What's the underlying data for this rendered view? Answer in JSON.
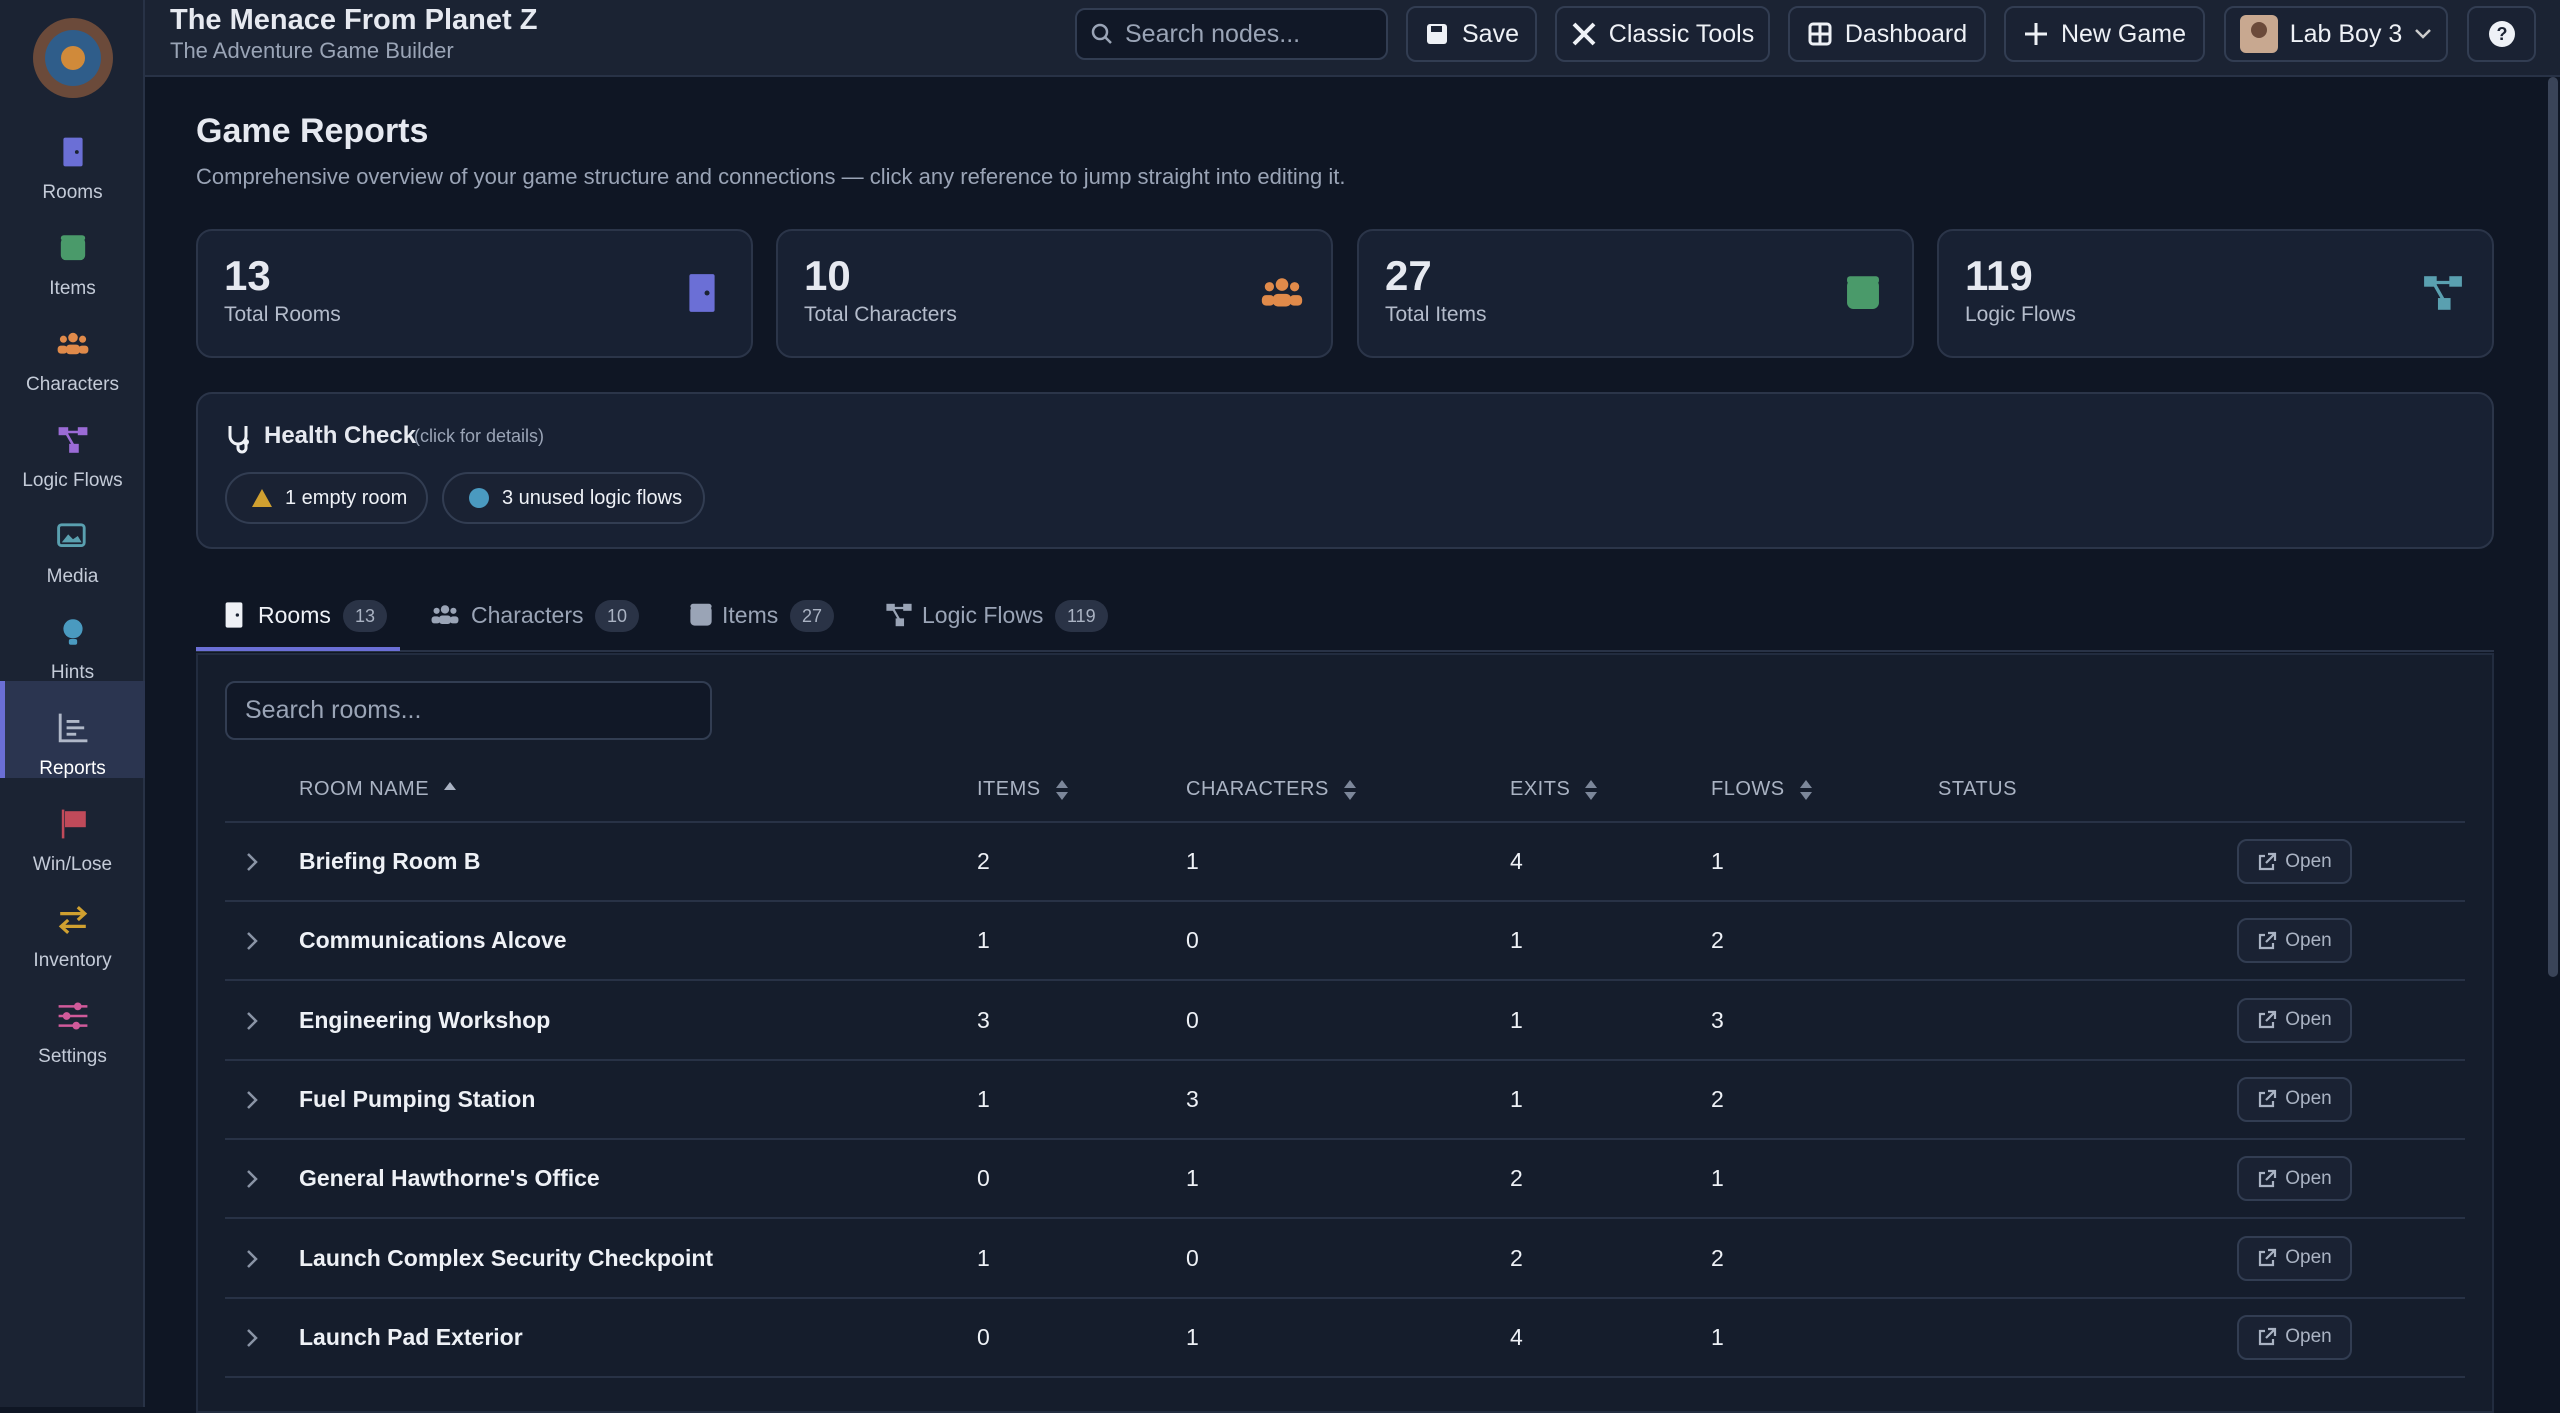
{
  "header": {
    "title": "The Menace From Planet Z",
    "subtitle": "The Adventure Game Builder",
    "search_placeholder": "Search nodes...",
    "buttons": [
      "Save",
      "Classic Tools",
      "Dashboard",
      "New Game"
    ],
    "user": "Lab Boy 3"
  },
  "sidebar": [
    "Rooms",
    "Items",
    "Characters",
    "Logic Flows",
    "Media",
    "Hints",
    "Reports",
    "Win/Lose",
    "Inventory",
    "Settings"
  ],
  "page": {
    "title": "Game Reports",
    "description": "Comprehensive overview of your game structure and connections — click any reference to jump straight into editing it."
  },
  "stats": [
    {
      "value": 13,
      "label": "Total Rooms"
    },
    {
      "value": 10,
      "label": "Total Characters"
    },
    {
      "value": 27,
      "label": "Total Items"
    },
    {
      "value": 119,
      "label": "Logic Flows"
    }
  ],
  "health": {
    "title": "Health Check",
    "hint": "(click for details)",
    "issues": [
      "1 empty room",
      "3 unused logic flows"
    ]
  },
  "tabs": [
    {
      "label": "Rooms",
      "count": 13
    },
    {
      "label": "Characters",
      "count": 10
    },
    {
      "label": "Items",
      "count": 27
    },
    {
      "label": "Logic Flows",
      "count": 119
    }
  ],
  "table": {
    "search_placeholder": "Search rooms...",
    "columns": [
      "ROOM NAME",
      "ITEMS",
      "CHARACTERS",
      "EXITS",
      "FLOWS",
      "STATUS"
    ],
    "action": "Open",
    "rows": [
      [
        "Briefing Room B",
        2,
        1,
        4,
        1
      ],
      [
        "Communications Alcove",
        1,
        0,
        1,
        2
      ],
      [
        "Engineering Workshop",
        3,
        0,
        1,
        3
      ],
      [
        "Fuel Pumping Station",
        1,
        3,
        1,
        2
      ],
      [
        "General Hawthorne's Office",
        0,
        1,
        2,
        1
      ],
      [
        "Launch Complex Security Checkpoint",
        1,
        0,
        2,
        2
      ],
      [
        "Launch Pad Exterior",
        0,
        1,
        4,
        1
      ]
    ]
  }
}
